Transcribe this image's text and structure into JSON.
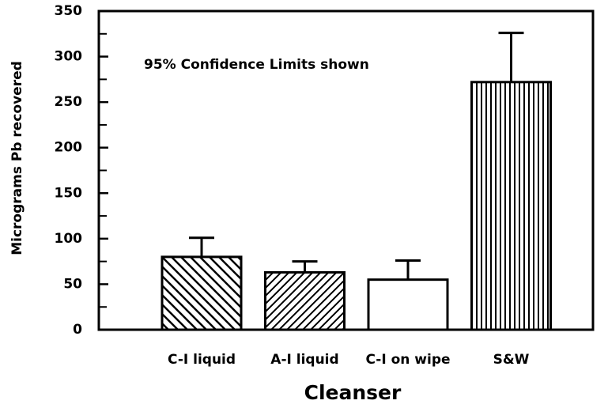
{
  "chart_data": {
    "type": "bar",
    "ylabel": "Micrograms Pb recovered",
    "xlabel": "Cleanser",
    "annotation": "95% Confidence Limits shown",
    "categories": [
      "C-I liquid",
      "A-I liquid",
      "C-I on wipe",
      "S&W"
    ],
    "values": [
      80,
      63,
      55,
      272
    ],
    "errors": [
      21,
      12,
      21,
      54
    ],
    "patterns": [
      "back-diagonal",
      "diagonal",
      "none",
      "vertical"
    ],
    "color": "#000000",
    "ylim": [
      0,
      350
    ],
    "yticks": [
      0,
      50,
      100,
      150,
      200,
      250,
      300,
      350
    ],
    "minor_yticks": [
      25,
      75,
      125,
      175,
      225,
      275,
      325
    ],
    "grid": false
  }
}
